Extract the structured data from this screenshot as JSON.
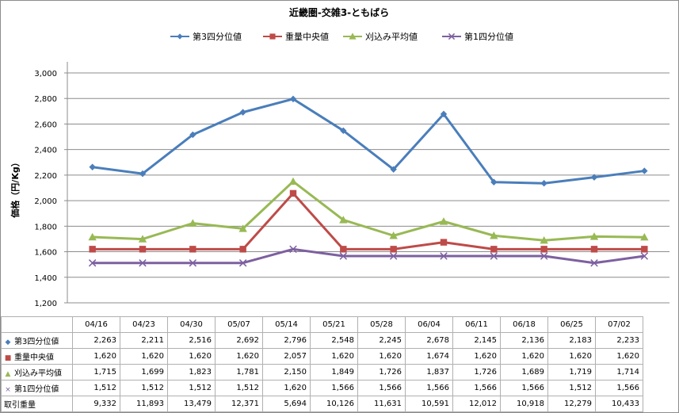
{
  "chart_data": {
    "type": "line",
    "title": "近畿圏-交雑3-ともばら",
    "ylabel": "価格（円/Kg）",
    "xlabel": "",
    "ylim": [
      1200,
      3000
    ],
    "yticks": [
      "1,200",
      "1,400",
      "1,600",
      "1,800",
      "2,000",
      "2,200",
      "2,400",
      "2,600",
      "2,800",
      "3,000"
    ],
    "grid": true,
    "legend_position": "top",
    "categories": [
      "04/16",
      "04/23",
      "04/30",
      "05/07",
      "05/14",
      "05/21",
      "05/28",
      "06/04",
      "06/11",
      "06/18",
      "06/25",
      "07/02"
    ],
    "series": [
      {
        "name": "第3四分位値",
        "color": "#4a7ebb",
        "marker": "diamond",
        "values": [
          2263,
          2211,
          2516,
          2692,
          2796,
          2548,
          2245,
          2678,
          2145,
          2136,
          2183,
          2233
        ]
      },
      {
        "name": "重量中央値",
        "color": "#be4b48",
        "marker": "square",
        "values": [
          1620,
          1620,
          1620,
          1620,
          2057,
          1620,
          1620,
          1674,
          1620,
          1620,
          1620,
          1620
        ]
      },
      {
        "name": "刈込み平均値",
        "color": "#98b954",
        "marker": "triangle",
        "values": [
          1715,
          1699,
          1823,
          1781,
          2150,
          1849,
          1726,
          1837,
          1726,
          1689,
          1719,
          1714
        ]
      },
      {
        "name": "第1四分位値",
        "color": "#7d60a0",
        "marker": "x",
        "values": [
          1512,
          1512,
          1512,
          1512,
          1620,
          1566,
          1566,
          1566,
          1566,
          1566,
          1512,
          1566
        ]
      }
    ],
    "table": {
      "rows": [
        {
          "label": "第3四分位値",
          "marker": "diamond",
          "color": "#4a7ebb",
          "cells": [
            "2,263",
            "2,211",
            "2,516",
            "2,692",
            "2,796",
            "2,548",
            "2,245",
            "2,678",
            "2,145",
            "2,136",
            "2,183",
            "2,233"
          ]
        },
        {
          "label": "重量中央値",
          "marker": "square",
          "color": "#be4b48",
          "cells": [
            "1,620",
            "1,620",
            "1,620",
            "1,620",
            "2,057",
            "1,620",
            "1,620",
            "1,674",
            "1,620",
            "1,620",
            "1,620",
            "1,620"
          ]
        },
        {
          "label": "刈込み平均値",
          "marker": "triangle",
          "color": "#98b954",
          "cells": [
            "1,715",
            "1,699",
            "1,823",
            "1,781",
            "2,150",
            "1,849",
            "1,726",
            "1,837",
            "1,726",
            "1,689",
            "1,719",
            "1,714"
          ]
        },
        {
          "label": "第1四分位値",
          "marker": "x",
          "color": "#7d60a0",
          "cells": [
            "1,512",
            "1,512",
            "1,512",
            "1,512",
            "1,620",
            "1,566",
            "1,566",
            "1,566",
            "1,566",
            "1,566",
            "1,512",
            "1,566"
          ]
        },
        {
          "label": "取引重量",
          "marker": "",
          "color": "",
          "cells": [
            "9,332",
            "11,893",
            "13,479",
            "12,371",
            "5,694",
            "10,126",
            "11,631",
            "10,591",
            "12,012",
            "10,918",
            "12,279",
            "10,433"
          ]
        }
      ]
    }
  }
}
